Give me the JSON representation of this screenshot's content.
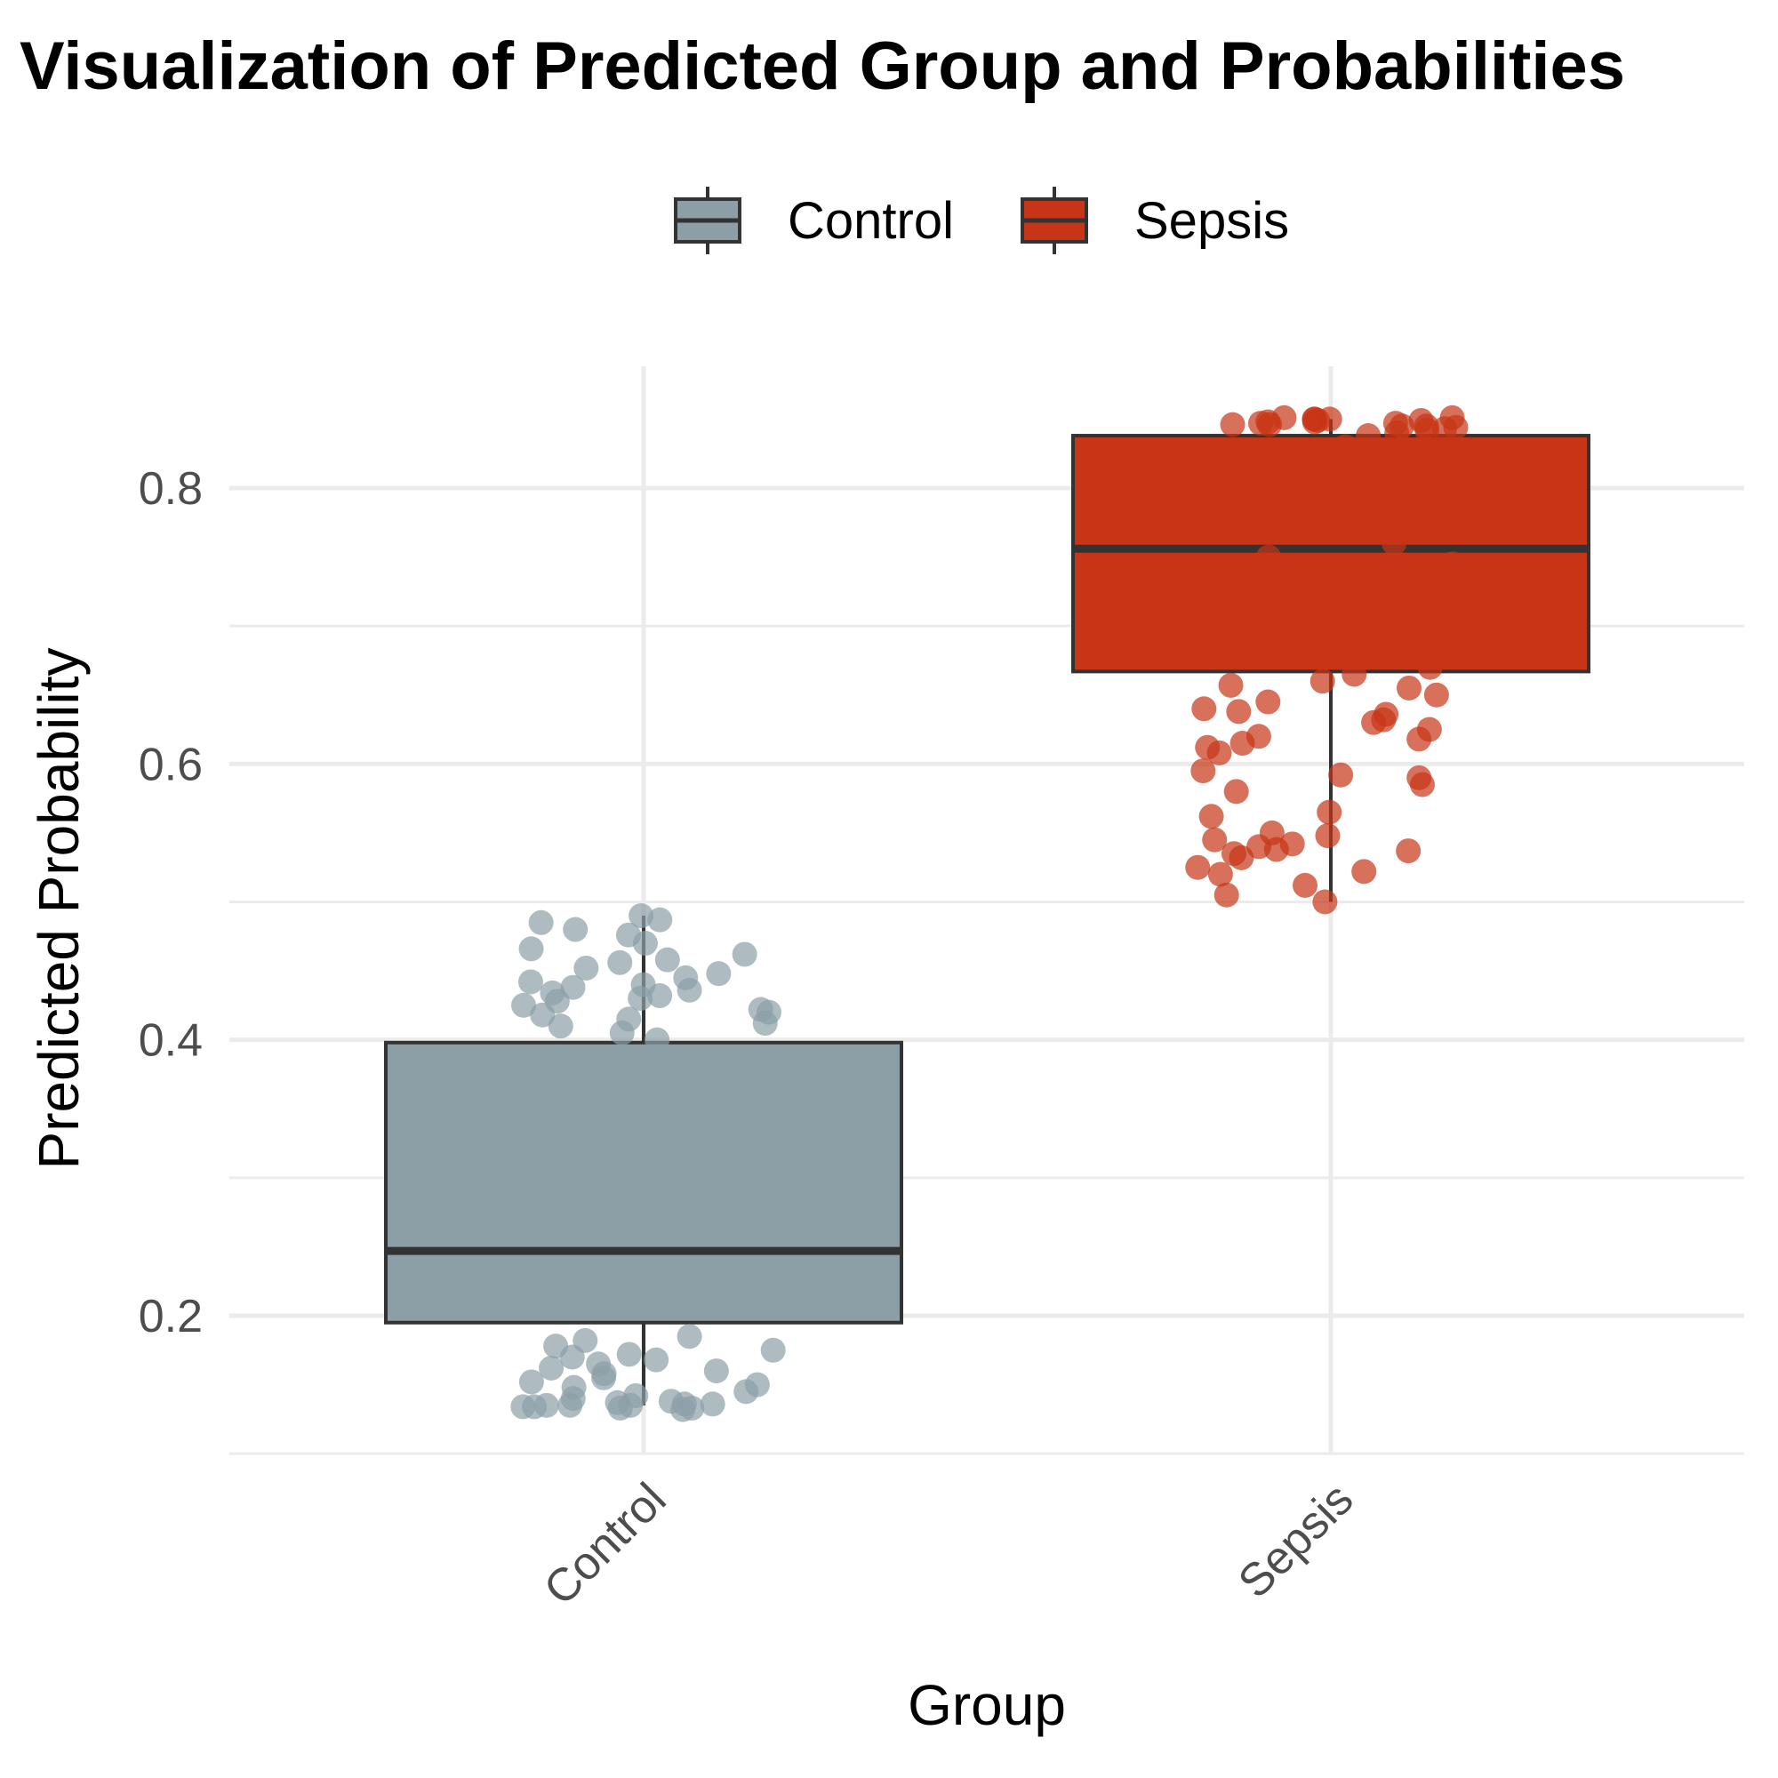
{
  "chart_data": {
    "type": "box",
    "title": "Visualization of Predicted Group and Probabilities",
    "xlabel": "Group",
    "ylabel": "Predicted Probability",
    "categories": [
      "Control",
      "Sepsis"
    ],
    "ylim": [
      0.1,
      0.89
    ],
    "yticks": [
      0.2,
      0.4,
      0.6,
      0.8
    ],
    "grid": true,
    "legend_position": "top",
    "legend": [
      {
        "label": "Control",
        "color": "#8c9fa6"
      },
      {
        "label": "Sepsis",
        "color": "#c83416"
      }
    ],
    "series": [
      {
        "name": "Control",
        "color": "#8c9fa6",
        "box": {
          "lower_whisker": 0.135,
          "q1": 0.195,
          "median": 0.247,
          "q3": 0.398,
          "upper_whisker": 0.49
        },
        "jitter_y": [
          0.49,
          0.487,
          0.485,
          0.48,
          0.476,
          0.47,
          0.466,
          0.462,
          0.458,
          0.456,
          0.452,
          0.448,
          0.445,
          0.442,
          0.44,
          0.438,
          0.436,
          0.434,
          0.432,
          0.43,
          0.428,
          0.425,
          0.422,
          0.42,
          0.418,
          0.415,
          0.412,
          0.41,
          0.405,
          0.4,
          0.185,
          0.182,
          0.178,
          0.175,
          0.172,
          0.17,
          0.168,
          0.165,
          0.162,
          0.16,
          0.158,
          0.155,
          0.152,
          0.15,
          0.148,
          0.145,
          0.142,
          0.14,
          0.138,
          0.137,
          0.136,
          0.136,
          0.135,
          0.135,
          0.135,
          0.134,
          0.134,
          0.133,
          0.133,
          0.132
        ]
      },
      {
        "name": "Sepsis",
        "color": "#c83416",
        "box": {
          "lower_whisker": 0.5,
          "q1": 0.667,
          "median": 0.756,
          "q3": 0.838,
          "upper_whisker": 0.85
        },
        "jitter_y": [
          0.851,
          0.851,
          0.85,
          0.85,
          0.85,
          0.849,
          0.849,
          0.848,
          0.848,
          0.847,
          0.847,
          0.846,
          0.846,
          0.845,
          0.845,
          0.844,
          0.843,
          0.842,
          0.84,
          0.838,
          0.83,
          0.82,
          0.81,
          0.8,
          0.79,
          0.78,
          0.77,
          0.76,
          0.75,
          0.745,
          0.74,
          0.73,
          0.72,
          0.71,
          0.7,
          0.69,
          0.68,
          0.67,
          0.665,
          0.66,
          0.657,
          0.655,
          0.65,
          0.645,
          0.64,
          0.638,
          0.636,
          0.632,
          0.63,
          0.625,
          0.62,
          0.618,
          0.615,
          0.612,
          0.608,
          0.595,
          0.592,
          0.59,
          0.585,
          0.58,
          0.565,
          0.562,
          0.55,
          0.548,
          0.545,
          0.542,
          0.54,
          0.538,
          0.537,
          0.535,
          0.532,
          0.525,
          0.522,
          0.52,
          0.512,
          0.505,
          0.5
        ]
      }
    ]
  }
}
